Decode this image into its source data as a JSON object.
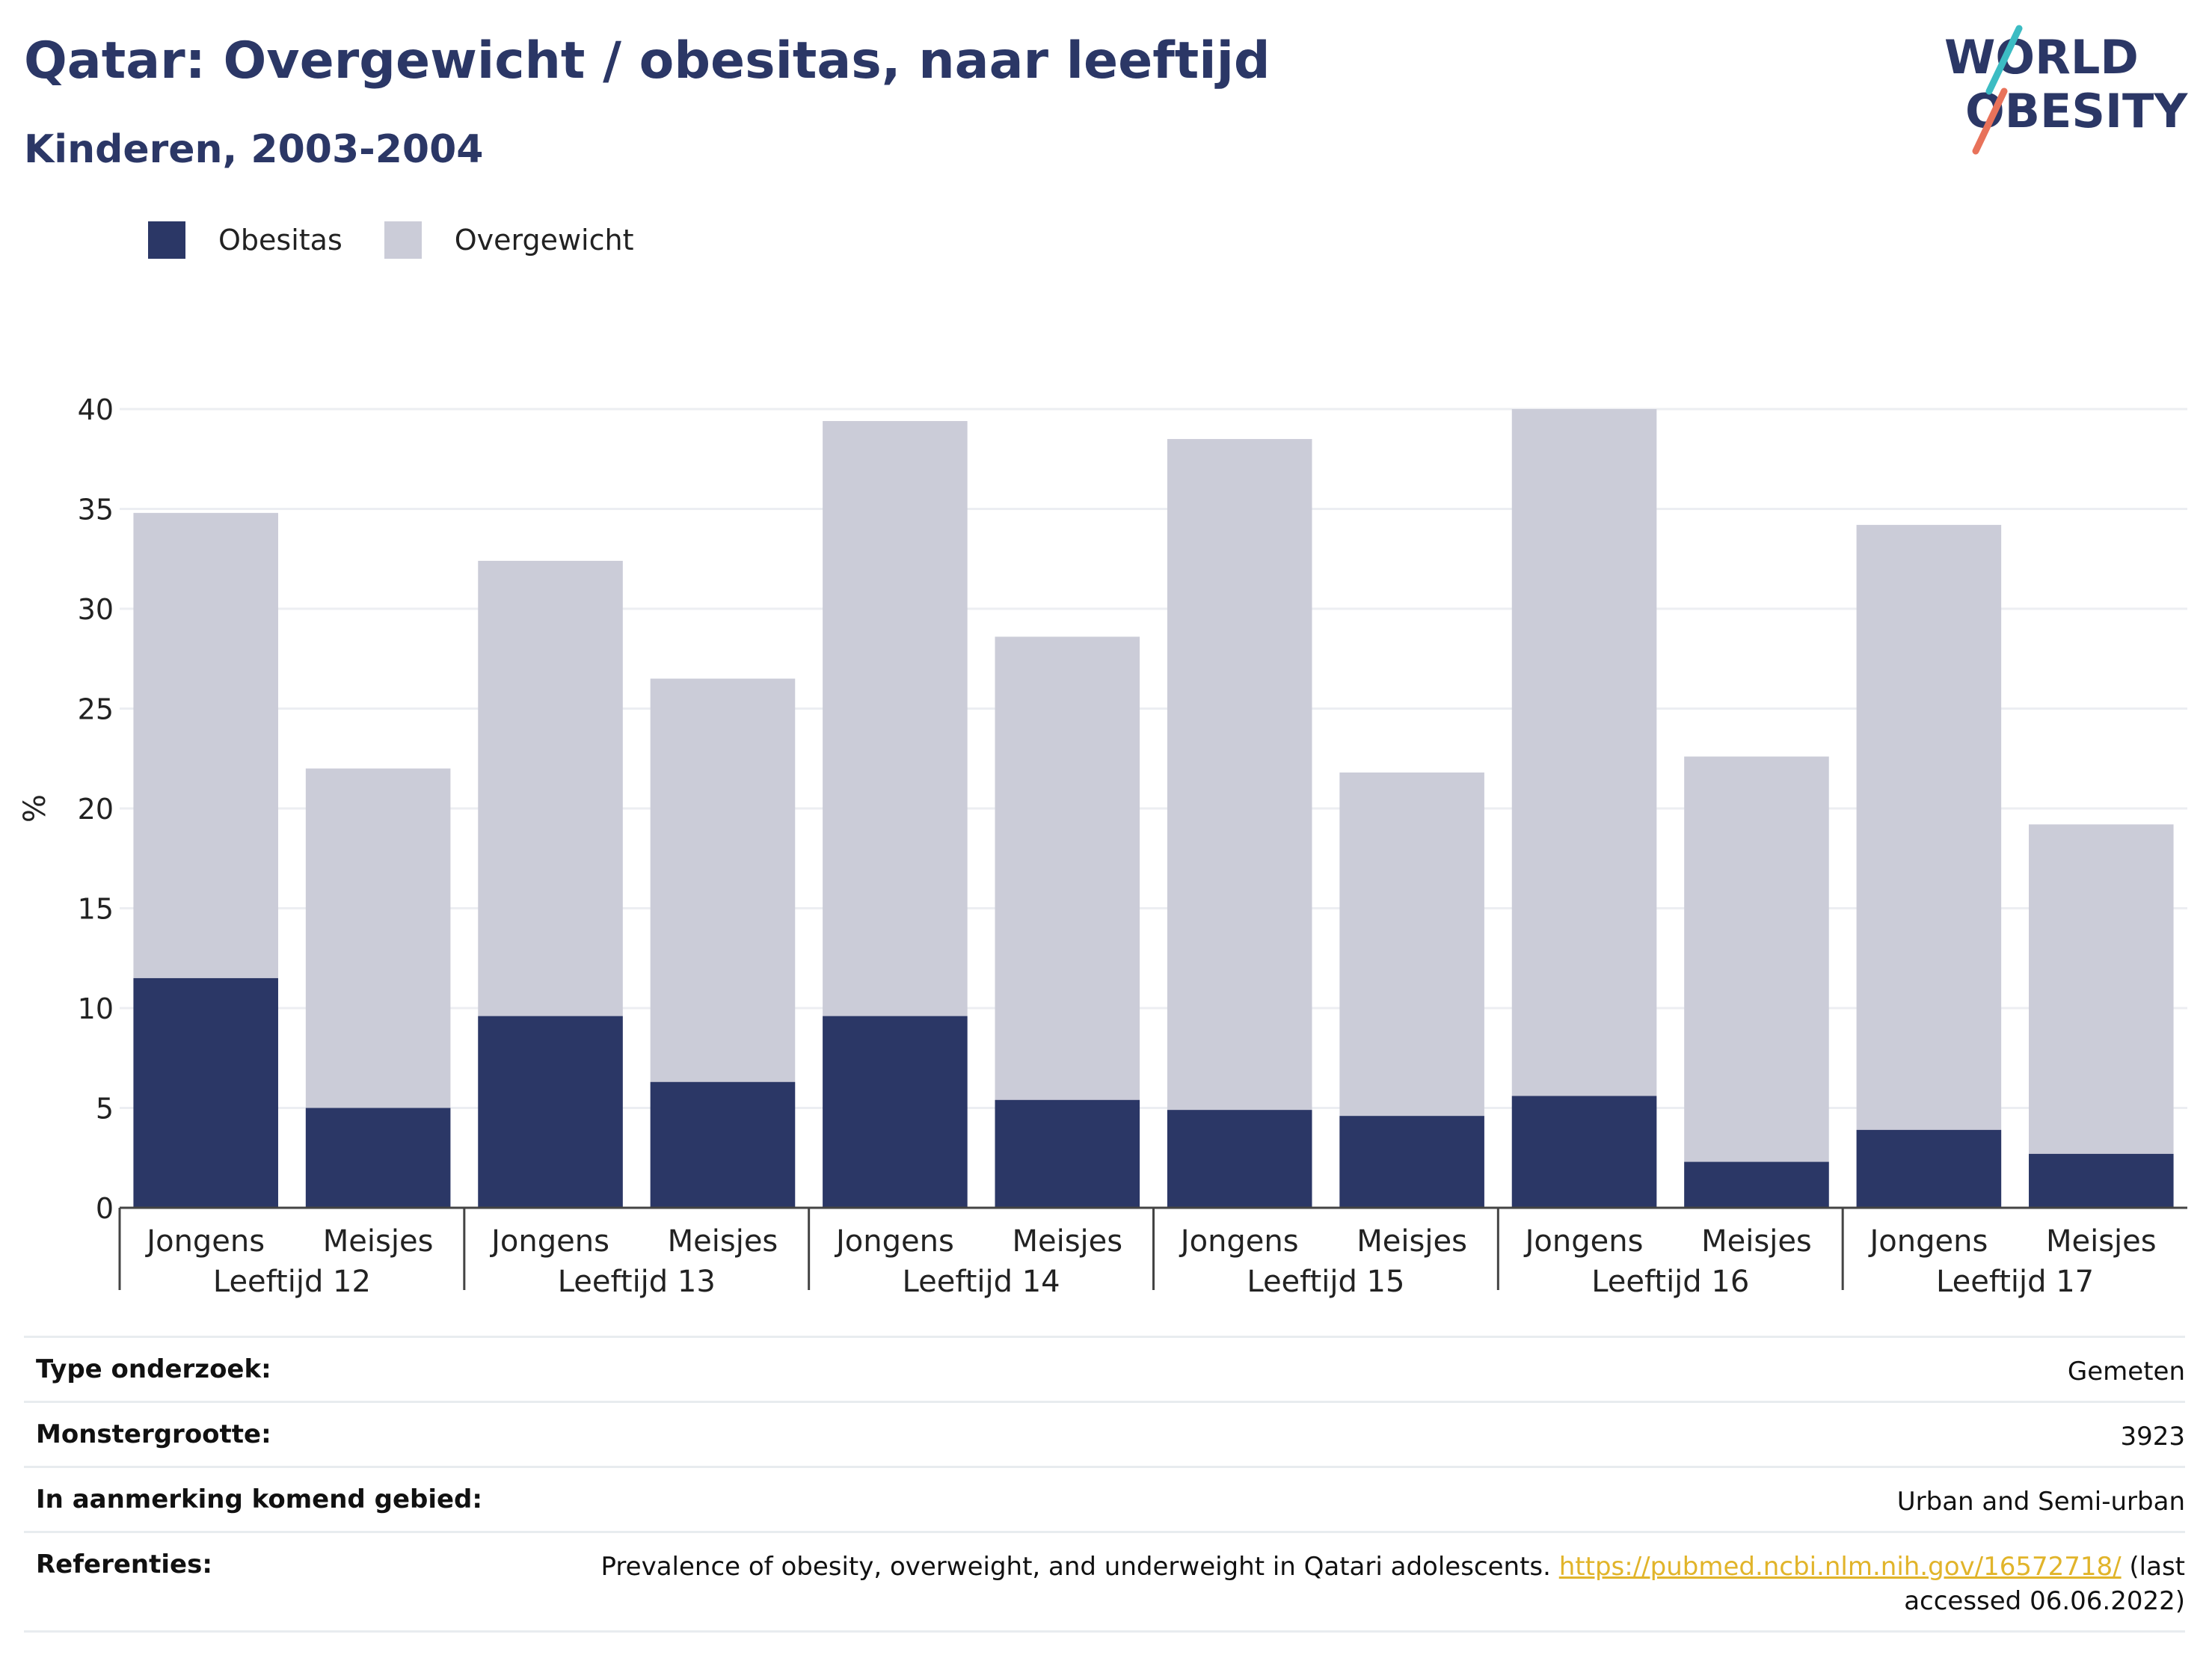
{
  "title": "Qatar: Overgewicht / obesitas, naar leeftijd",
  "subtitle": "Kinderen, 2003-2004",
  "logo": {
    "line1": "WORLD",
    "line2": "OBESITY"
  },
  "colors": {
    "obesitas": "#2b3766",
    "overgewicht": "#cbccd8",
    "title": "#2b3766",
    "link": "#e1b42a"
  },
  "chart_data": {
    "type": "bar",
    "stacked": false,
    "ylabel": "%",
    "ylim": [
      0,
      40
    ],
    "yticks": [
      0,
      5,
      10,
      15,
      20,
      25,
      30,
      35,
      40
    ],
    "grid": true,
    "legend_position": "top-left",
    "groups": [
      "Leeftijd 12",
      "Leeftijd 13",
      "Leeftijd 14",
      "Leeftijd 15",
      "Leeftijd 16",
      "Leeftijd 17"
    ],
    "subcategories": [
      "Jongens",
      "Meisjes"
    ],
    "categories": [
      "Jongens",
      "Meisjes",
      "Jongens",
      "Meisjes",
      "Jongens",
      "Meisjes",
      "Jongens",
      "Meisjes",
      "Jongens",
      "Meisjes",
      "Jongens",
      "Meisjes"
    ],
    "series": [
      {
        "name": "Overgewicht",
        "values": [
          34.8,
          22.0,
          32.4,
          26.5,
          39.4,
          28.6,
          38.5,
          21.8,
          40.0,
          22.6,
          34.2,
          19.2
        ]
      },
      {
        "name": "Obesitas",
        "values": [
          11.5,
          5.0,
          9.6,
          6.3,
          9.6,
          5.4,
          4.9,
          4.6,
          5.6,
          2.3,
          3.9,
          2.7
        ]
      }
    ]
  },
  "info": {
    "rows": [
      {
        "label": "Type onderzoek:",
        "value": "Gemeten"
      },
      {
        "label": "Monstergrootte:",
        "value": "3923"
      },
      {
        "label": "In aanmerking komend gebied:",
        "value": "Urban and Semi-urban"
      }
    ],
    "reference": {
      "label": "Referenties:",
      "text": "Prevalence of obesity, overweight, and underweight in Qatari adolescents. ",
      "link": "https://pubmed.ncbi.nlm.nih.gov/16572718/",
      "suffix": " (last accessed 06.06.2022)"
    }
  }
}
